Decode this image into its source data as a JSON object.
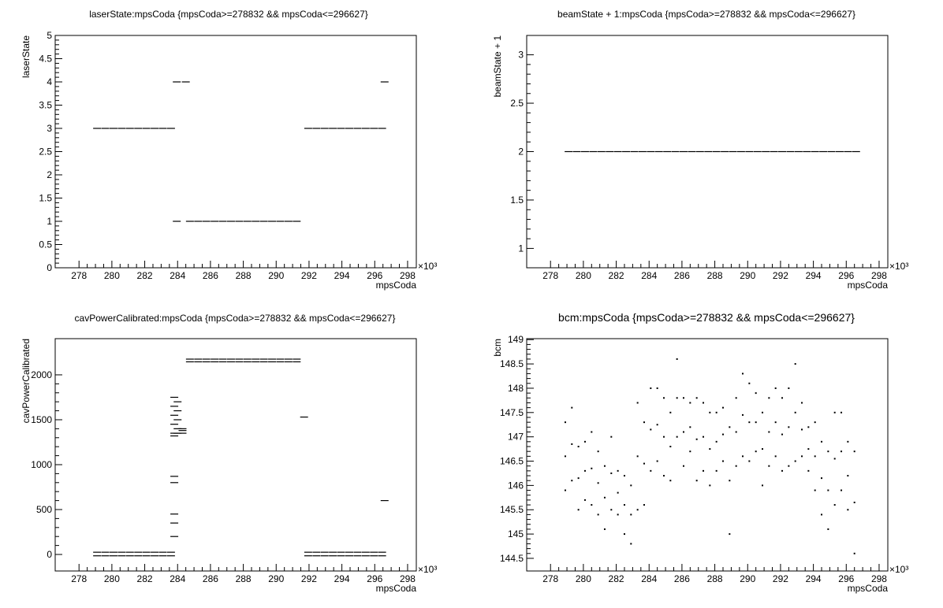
{
  "chart_data": [
    {
      "type": "scatter",
      "title": "laserState:mpsCoda {mpsCoda>=278832 && mpsCoda<=296627}",
      "x_label": "mpsCoda",
      "y_label": "laserState",
      "x_multiplier": "×10³",
      "color": "#000000",
      "xlim": [
        276.55,
        298.53
      ],
      "xticks": [
        278,
        280,
        282,
        284,
        286,
        288,
        290,
        292,
        294,
        296,
        298
      ],
      "ylim": [
        0,
        5
      ],
      "yticks": [
        0,
        0.5,
        1,
        1.5,
        2,
        2.5,
        3,
        3.5,
        4,
        4.5,
        5
      ],
      "x": [
        279.1,
        279.6,
        280.1,
        280.6,
        281.1,
        281.6,
        282.1,
        282.6,
        283.1,
        283.6,
        283.95,
        284.5,
        283.95,
        284.75,
        285.25,
        285.75,
        286.25,
        286.75,
        287.25,
        287.75,
        288.25,
        288.75,
        289.25,
        289.75,
        290.25,
        290.75,
        291.25,
        291.95,
        292.45,
        292.95,
        293.45,
        293.95,
        294.45,
        294.95,
        295.45,
        295.95,
        296.45,
        296.6
      ],
      "values": [
        3,
        3,
        3,
        3,
        3,
        3,
        3,
        3,
        3,
        3,
        4,
        4,
        1,
        1,
        1,
        1,
        1,
        1,
        1,
        1,
        1,
        1,
        1,
        1,
        1,
        1,
        1,
        3,
        3,
        3,
        3,
        3,
        3,
        3,
        3,
        3,
        3,
        4
      ]
    },
    {
      "type": "scatter",
      "title": "beamState + 1:mpsCoda {mpsCoda>=278832 && mpsCoda<=296627}",
      "x_label": "mpsCoda",
      "y_label": "beamState + 1",
      "x_multiplier": "×10³",
      "color": "#000000",
      "xlim": [
        276.55,
        298.53
      ],
      "xticks": [
        278,
        280,
        282,
        284,
        286,
        288,
        290,
        292,
        294,
        296,
        298
      ],
      "ylim": [
        0.8,
        3.2
      ],
      "yticks": [
        1,
        1.5,
        2,
        2.5,
        3
      ],
      "x": [
        279.1,
        279.6,
        280.1,
        280.6,
        281.1,
        281.6,
        282.1,
        282.6,
        283.1,
        283.6,
        284.1,
        284.6,
        285.1,
        285.6,
        286.1,
        286.6,
        287.1,
        287.6,
        288.1,
        288.6,
        289.1,
        289.6,
        290.1,
        290.6,
        291.1,
        291.6,
        292.1,
        292.6,
        293.1,
        293.6,
        294.1,
        294.6,
        295.1,
        295.6,
        296.1,
        296.6
      ],
      "values": [
        2,
        2,
        2,
        2,
        2,
        2,
        2,
        2,
        2,
        2,
        2,
        2,
        2,
        2,
        2,
        2,
        2,
        2,
        2,
        2,
        2,
        2,
        2,
        2,
        2,
        2,
        2,
        2,
        2,
        2,
        2,
        2,
        2,
        2,
        2,
        2
      ]
    },
    {
      "type": "scatter",
      "title": "cavPowerCalibrated:mpsCoda {mpsCoda>=278832 && mpsCoda<=296627}",
      "x_label": "mpsCoda",
      "y_label": "cavPowerCalibrated",
      "x_multiplier": "×10³",
      "color": "#000000",
      "xlim": [
        276.55,
        298.53
      ],
      "xticks": [
        278,
        280,
        282,
        284,
        286,
        288,
        290,
        292,
        294,
        296,
        298
      ],
      "ylim": [
        -184,
        2403
      ],
      "yticks": [
        0,
        500,
        1000,
        1500,
        2000
      ],
      "x": [
        279.1,
        279.6,
        280.1,
        280.6,
        281.1,
        281.6,
        282.1,
        282.6,
        283.1,
        283.6,
        279.1,
        279.6,
        280.1,
        280.6,
        281.1,
        281.6,
        282.1,
        282.6,
        283.1,
        283.6,
        291.95,
        292.45,
        292.95,
        293.45,
        293.95,
        294.45,
        294.95,
        295.45,
        295.95,
        296.45,
        291.95,
        292.45,
        292.95,
        293.45,
        293.95,
        294.45,
        294.95,
        295.45,
        295.95,
        296.45,
        284.75,
        285.25,
        285.75,
        286.25,
        286.75,
        287.25,
        287.75,
        288.25,
        288.75,
        289.25,
        289.75,
        290.25,
        290.75,
        291.25,
        284.75,
        285.25,
        285.75,
        286.25,
        286.75,
        287.25,
        287.75,
        288.25,
        288.75,
        289.25,
        289.75,
        290.25,
        290.75,
        291.25,
        283.8,
        283.8,
        283.8,
        283.8,
        283.8,
        283.8,
        284.0,
        284.0,
        284.0,
        284.0,
        284.0,
        284.3,
        284.3,
        284.3,
        283.8,
        283.8,
        283.8,
        283.8,
        283.8,
        296.6,
        291.7
      ],
      "values": [
        25,
        25,
        25,
        25,
        25,
        25,
        25,
        25,
        25,
        25,
        -15,
        -15,
        -15,
        -15,
        -15,
        -15,
        -15,
        -15,
        -15,
        -15,
        25,
        25,
        25,
        25,
        25,
        25,
        25,
        25,
        25,
        25,
        -15,
        -15,
        -15,
        -15,
        -15,
        -15,
        -15,
        -15,
        -15,
        -15,
        2175,
        2175,
        2175,
        2175,
        2175,
        2175,
        2175,
        2175,
        2175,
        2175,
        2175,
        2175,
        2175,
        2175,
        2145,
        2145,
        2145,
        2145,
        2145,
        2145,
        2145,
        2145,
        2145,
        2145,
        2145,
        2145,
        2145,
        2145,
        1750,
        1650,
        1550,
        1450,
        1350,
        1320,
        1700,
        1600,
        1500,
        1400,
        1350,
        1400,
        1380,
        1350,
        870,
        800,
        450,
        350,
        200,
        600,
        1530
      ]
    },
    {
      "type": "scatter",
      "title": "bcm:mpsCoda {mpsCoda>=278832 && mpsCoda<=296627}",
      "x_label": "mpsCoda",
      "y_label": "bcm",
      "x_multiplier": "×10³",
      "color": "#000000",
      "xlim": [
        276.55,
        298.53
      ],
      "xticks": [
        278,
        280,
        282,
        284,
        286,
        288,
        290,
        292,
        294,
        296,
        298
      ],
      "ylim": [
        144.24,
        149.02
      ],
      "yticks": [
        144.5,
        145,
        145.5,
        146,
        146.5,
        147,
        147.5,
        148,
        148.5,
        149
      ],
      "x": [
        278.9,
        279.3,
        279.7,
        280.1,
        280.5,
        280.9,
        281.3,
        281.7,
        282.1,
        282.5,
        282.9,
        283.3,
        283.7,
        284.1,
        284.5,
        284.9,
        285.3,
        285.7,
        286.1,
        286.5,
        286.9,
        287.3,
        287.7,
        288.1,
        288.5,
        288.9,
        289.3,
        289.7,
        290.1,
        290.5,
        290.9,
        291.3,
        291.7,
        292.1,
        292.5,
        292.9,
        293.3,
        293.7,
        294.1,
        294.5,
        294.9,
        295.3,
        295.7,
        296.1,
        296.5
      ],
      "series": [
        {
          "values": [
            145.9,
            146.1,
            145.5,
            145.7,
            145.6,
            145.4,
            145.1,
            145.5,
            145.4,
            145.0,
            144.8,
            145.5,
            145.6,
            146.3,
            146.5,
            146.2,
            146.1,
            147.0,
            146.4,
            146.7,
            146.1,
            146.3,
            146.0,
            146.3,
            146.5,
            145.0,
            146.4,
            146.6,
            146.5,
            146.7,
            146.0,
            146.4,
            146.6,
            146.3,
            146.4,
            146.5,
            146.6,
            146.3,
            145.9,
            145.4,
            145.1,
            145.6,
            145.9,
            145.5,
            144.6
          ]
        },
        {
          "values": [
            146.6,
            146.85,
            146.15,
            146.3,
            146.35,
            146.05,
            145.75,
            146.25,
            145.85,
            145.6,
            145.4,
            146.6,
            146.45,
            147.15,
            147.25,
            147.0,
            146.8,
            147.8,
            147.1,
            147.2,
            146.95,
            147.0,
            146.75,
            146.9,
            147.05,
            146.1,
            147.1,
            147.45,
            147.3,
            147.3,
            146.75,
            147.1,
            147.3,
            147.05,
            147.2,
            147.5,
            147.15,
            146.75,
            146.6,
            146.15,
            145.9,
            146.55,
            146.7,
            146.2,
            145.65
          ]
        },
        {
          "values": [
            147.3,
            147.6,
            146.8,
            146.9,
            147.1,
            146.7,
            146.4,
            147.0,
            146.3,
            146.2,
            146.0,
            147.7,
            147.3,
            148.0,
            148.0,
            147.8,
            147.5,
            148.6,
            147.8,
            147.7,
            147.8,
            147.7,
            147.5,
            147.5,
            147.6,
            147.2,
            147.8,
            148.3,
            148.1,
            147.9,
            147.5,
            147.8,
            148.0,
            147.8,
            148.0,
            148.5,
            147.7,
            147.2,
            147.3,
            146.9,
            146.7,
            147.5,
            147.5,
            146.9,
            146.7
          ]
        }
      ]
    }
  ]
}
